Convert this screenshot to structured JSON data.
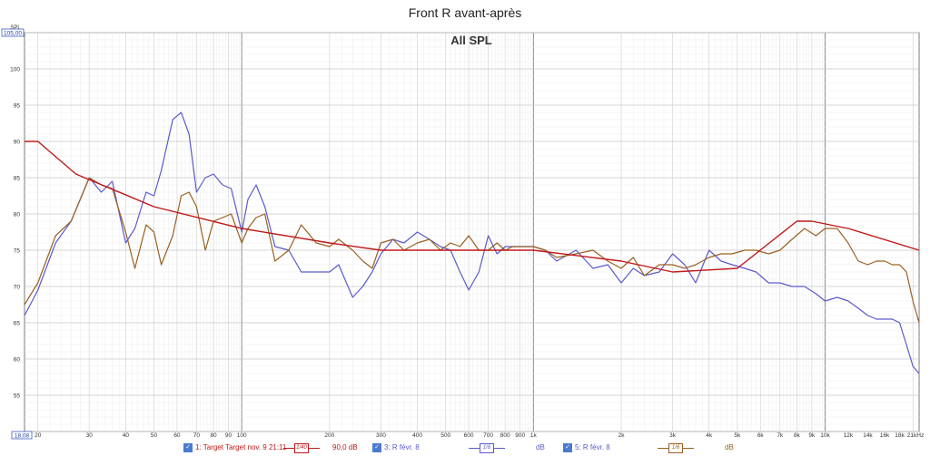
{
  "window_title": "Front R avant-après",
  "chart_data": {
    "type": "line",
    "title": "All SPL",
    "ylabel": "SPL",
    "xscale": "log",
    "xlim": [
      18.0,
      21000
    ],
    "ylim": [
      50,
      105
    ],
    "ylim_labels": {
      "top": "105,00",
      "bottom": "18,08"
    },
    "x_ticks": [
      {
        "v": 20,
        "label": "20"
      },
      {
        "v": 30,
        "label": "30"
      },
      {
        "v": 40,
        "label": "40"
      },
      {
        "v": 50,
        "label": "50"
      },
      {
        "v": 60,
        "label": "60"
      },
      {
        "v": 70,
        "label": "70"
      },
      {
        "v": 80,
        "label": "80"
      },
      {
        "v": 90,
        "label": "90"
      },
      {
        "v": 100,
        "label": "100"
      },
      {
        "v": 200,
        "label": "200"
      },
      {
        "v": 300,
        "label": "300"
      },
      {
        "v": 400,
        "label": "400"
      },
      {
        "v": 500,
        "label": "500"
      },
      {
        "v": 600,
        "label": "600"
      },
      {
        "v": 700,
        "label": "700"
      },
      {
        "v": 800,
        "label": "800"
      },
      {
        "v": 900,
        "label": "900"
      },
      {
        "v": 1000,
        "label": "1k"
      },
      {
        "v": 2000,
        "label": "2k"
      },
      {
        "v": 3000,
        "label": "3k"
      },
      {
        "v": 4000,
        "label": "4k"
      },
      {
        "v": 5000,
        "label": "5k"
      },
      {
        "v": 6000,
        "label": "6k"
      },
      {
        "v": 7000,
        "label": "7k"
      },
      {
        "v": 8000,
        "label": "8k"
      },
      {
        "v": 9000,
        "label": "9k"
      },
      {
        "v": 10000,
        "label": "10k"
      },
      {
        "v": 12000,
        "label": "12k"
      },
      {
        "v": 14000,
        "label": "14k"
      },
      {
        "v": 16000,
        "label": "16k"
      },
      {
        "v": 18000,
        "label": "18k"
      },
      {
        "v": 21000,
        "label": "21kHz"
      }
    ],
    "y_ticks": [
      55,
      60,
      65,
      70,
      75,
      80,
      85,
      90,
      95,
      100
    ],
    "grid": true,
    "series": [
      {
        "name": "1: Target Target nov. 9 21:11",
        "color": "#c01818",
        "symbol_label": "90,0 dB",
        "symbol_glyph": "1/40",
        "x": [
          18,
          20,
          27,
          50,
          100,
          200,
          300,
          1000,
          2000,
          3000,
          5000,
          8000,
          9000,
          12000,
          21000
        ],
        "y": [
          90,
          90,
          85.5,
          81,
          78,
          76,
          75,
          75,
          73.5,
          72,
          72.5,
          79,
          79,
          78,
          75
        ]
      },
      {
        "name": "3: R févr. 8",
        "color": "#5a5acd",
        "symbol_label": "dB",
        "symbol_glyph": "1/6",
        "x": [
          18,
          20,
          23,
          26,
          30,
          33,
          36,
          40,
          43,
          47,
          50,
          53,
          58,
          62,
          66,
          70,
          75,
          80,
          86,
          92,
          100,
          105,
          112,
          120,
          130,
          145,
          160,
          180,
          200,
          215,
          240,
          260,
          280,
          300,
          330,
          360,
          400,
          440,
          480,
          520,
          560,
          600,
          650,
          700,
          750,
          800,
          850,
          900,
          1000,
          1100,
          1200,
          1400,
          1600,
          1800,
          2000,
          2200,
          2400,
          2700,
          3000,
          3300,
          3600,
          4000,
          4400,
          4800,
          5300,
          5800,
          6400,
          7000,
          7700,
          8500,
          9300,
          10000,
          11000,
          12000,
          13000,
          14000,
          15000,
          16000,
          17000,
          18000,
          19000,
          20000,
          21000
        ],
        "y": [
          66,
          69.5,
          76,
          79,
          85,
          83,
          84.5,
          76,
          78,
          83,
          82.5,
          86,
          93,
          94,
          91,
          83,
          85,
          85.5,
          84,
          83.5,
          77.5,
          82,
          84,
          81,
          75.5,
          75,
          72,
          72,
          72,
          73,
          68.5,
          70,
          72,
          74.5,
          76.5,
          76,
          77.5,
          76.5,
          75.5,
          75,
          72,
          69.5,
          72,
          77,
          74.5,
          75.5,
          75.5,
          75.5,
          75.5,
          75,
          73.5,
          75,
          72.5,
          73,
          70.5,
          72.5,
          71.5,
          72,
          74.5,
          73,
          70.5,
          75,
          73.5,
          73,
          72.5,
          72,
          70.5,
          70.5,
          70,
          70,
          69,
          68,
          68.5,
          68,
          67,
          66,
          65.5,
          65.5,
          65.5,
          65,
          62,
          59,
          58
        ]
      },
      {
        "name": "5: R févr. 8",
        "color": "#9a6020",
        "symbol_label": "dB",
        "symbol_glyph": "1/6",
        "x": [
          18,
          20,
          23,
          26,
          30,
          33,
          36,
          40,
          43,
          47,
          50,
          53,
          58,
          62,
          66,
          70,
          75,
          80,
          86,
          92,
          100,
          105,
          112,
          120,
          130,
          145,
          160,
          180,
          200,
          215,
          240,
          260,
          280,
          300,
          330,
          360,
          400,
          440,
          480,
          520,
          560,
          600,
          650,
          700,
          750,
          800,
          850,
          900,
          1000,
          1100,
          1200,
          1400,
          1600,
          1800,
          2000,
          2200,
          2400,
          2700,
          3000,
          3300,
          3600,
          4000,
          4400,
          4800,
          5300,
          5800,
          6400,
          7000,
          7700,
          8500,
          9300,
          10000,
          11000,
          12000,
          13000,
          14000,
          15000,
          16000,
          17000,
          18000,
          19000,
          20000,
          21000
        ],
        "y": [
          67.5,
          70.5,
          77,
          79,
          85,
          84,
          83.5,
          77.5,
          72.5,
          78.5,
          77.5,
          73,
          77,
          82.5,
          83,
          81,
          75,
          79,
          79.5,
          80,
          76,
          78,
          79.5,
          80,
          73.5,
          75,
          78.5,
          76,
          75.5,
          76.5,
          75,
          73.5,
          72.5,
          76,
          76.5,
          75,
          76,
          76.5,
          75,
          76,
          75.5,
          77,
          75,
          75,
          76,
          75,
          75.5,
          75.5,
          75.5,
          75,
          74,
          74.5,
          75,
          73.5,
          72.5,
          74,
          71.5,
          73,
          73,
          72.5,
          73,
          74,
          74.5,
          74.5,
          75,
          75,
          74.5,
          75,
          76.5,
          78,
          77,
          78,
          78,
          76,
          73.5,
          73,
          73.5,
          73.5,
          73,
          73,
          72,
          68,
          65
        ]
      }
    ]
  }
}
